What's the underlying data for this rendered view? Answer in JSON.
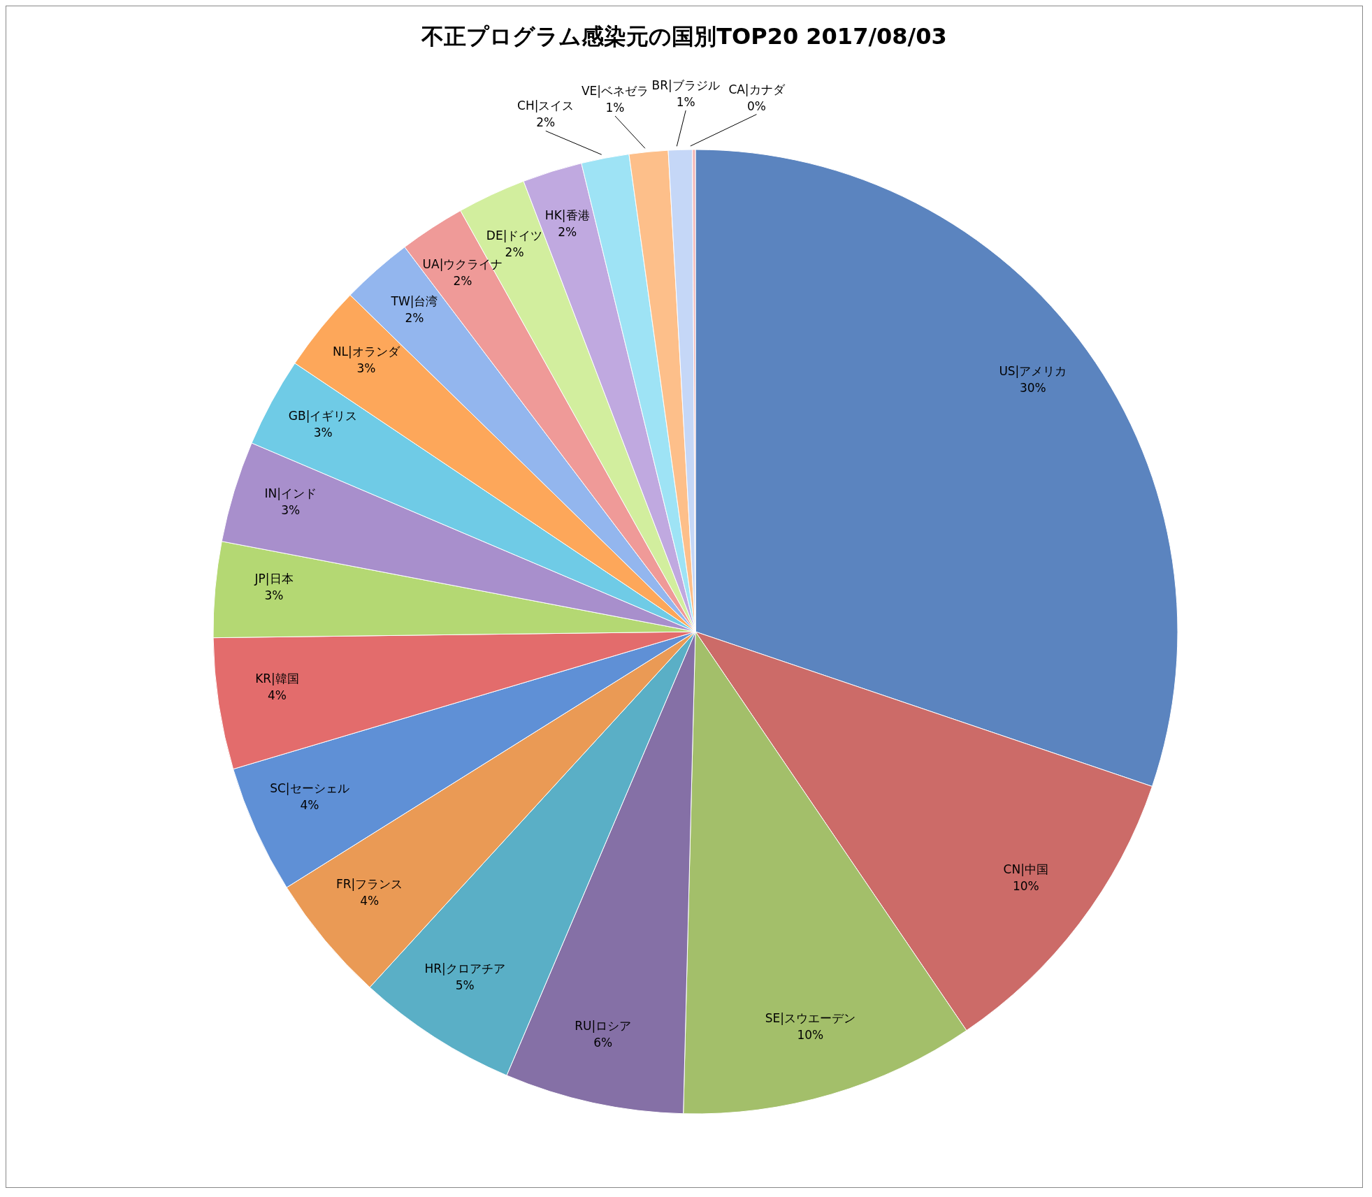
{
  "chart_data": {
    "type": "pie",
    "title": "不正プログラム感染元の国別TOP20 2017/08/03",
    "categories": [
      "US|アメリカ",
      "CN|中国",
      "SE|スウエーデン",
      "RU|ロシア",
      "HR|クロアチア",
      "FR|フランス",
      "SC|セーシェル",
      "KR|韓国",
      "JP|日本",
      "IN|インド",
      "GB|イギリス",
      "NL|オランダ",
      "TW|台湾",
      "UA|ウクライナ",
      "DE|ドイツ",
      "HK|香港",
      "CH|スイス",
      "VE|ベネゼラ",
      "BR|ブラジル",
      "CA|カナダ"
    ],
    "values": [
      30.2,
      10.3,
      9.9,
      6.0,
      5.4,
      4.3,
      4.3,
      4.4,
      3.2,
      3.4,
      3.0,
      2.9,
      2.4,
      2.2,
      2.3,
      2.0,
      1.6,
      1.3,
      0.8,
      0.1
    ],
    "value_labels": [
      "30%",
      "10%",
      "10%",
      "6%",
      "5%",
      "4%",
      "4%",
      "4%",
      "3%",
      "3%",
      "3%",
      "3%",
      "2%",
      "2%",
      "2%",
      "2%",
      "2%",
      "1%",
      "1%",
      "0%"
    ],
    "colors": [
      "#5b84bf",
      "#cc6b68",
      "#a3bf6a",
      "#8570a6",
      "#5aafc6",
      "#ea9a55",
      "#5f90d6",
      "#e36c6c",
      "#b4d873",
      "#a88fcc",
      "#6fcbe6",
      "#fda75a",
      "#93b6ee",
      "#ef9a98",
      "#d2ee9e",
      "#c0a9e0",
      "#9ee3f5",
      "#fdbf8a",
      "#c5d7f7",
      "#f4b8b8"
    ]
  }
}
